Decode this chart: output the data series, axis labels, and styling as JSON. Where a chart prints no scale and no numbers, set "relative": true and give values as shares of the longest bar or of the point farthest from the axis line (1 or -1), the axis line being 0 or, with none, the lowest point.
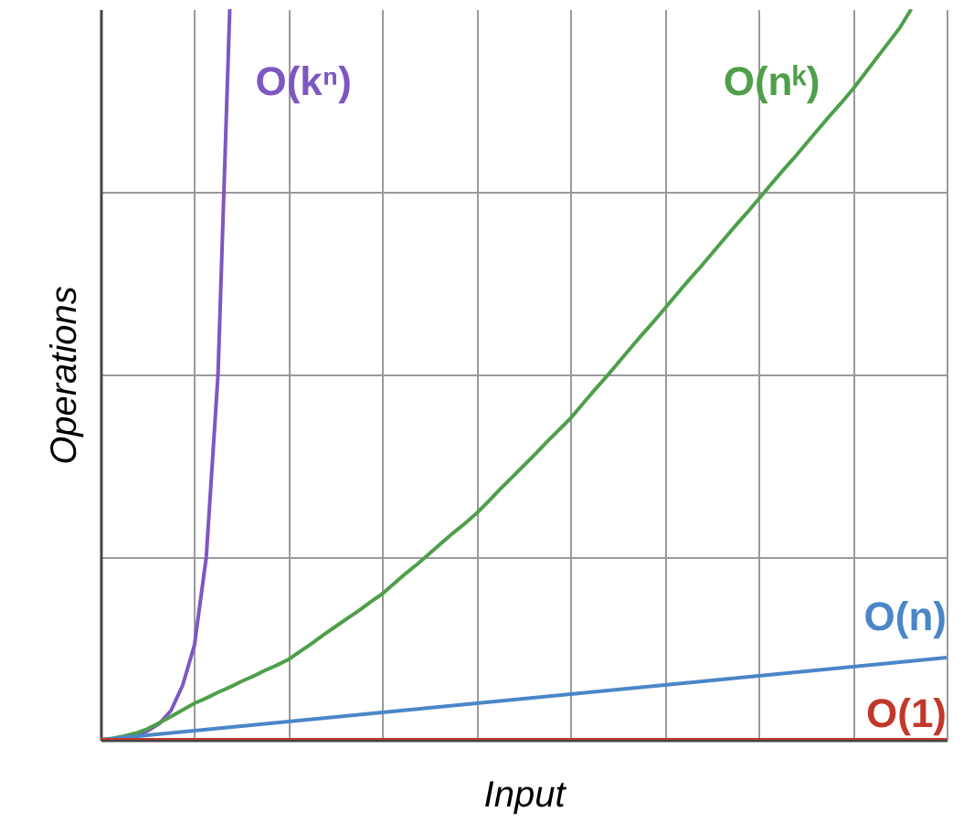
{
  "chart_data": {
    "type": "line",
    "relative": true,
    "xlabel": "Input",
    "ylabel": "Operations",
    "grid": true,
    "categories": [
      null,
      null,
      null,
      null,
      null,
      null,
      null,
      null,
      null,
      null,
      null,
      null,
      null,
      null,
      null,
      null,
      null,
      null,
      null,
      null,
      null,
      null,
      null,
      null,
      null,
      null,
      null,
      null,
      null,
      null,
      null,
      null,
      null,
      null,
      null,
      null,
      null,
      null,
      null,
      null,
      null,
      null,
      null,
      null,
      null,
      null,
      null,
      null,
      null,
      null,
      null,
      null,
      null,
      null,
      null,
      null,
      null,
      null,
      null,
      null,
      null,
      null,
      null,
      null,
      null,
      null,
      null,
      null,
      null,
      null,
      null,
      null,
      null
    ],
    "series": [
      {
        "name": "O(kⁿ)",
        "color": "#7e57c2",
        "values": [
          null,
          null,
          0.003,
          0.006,
          0.012,
          0.022,
          0.04,
          0.075,
          0.13,
          0.25,
          0.5,
          1.0,
          null,
          null,
          null,
          null,
          null,
          null,
          null,
          null,
          null,
          null,
          null,
          null,
          null,
          null,
          null,
          null,
          null,
          null,
          null,
          null,
          null,
          null,
          null,
          null,
          null,
          null,
          null,
          null,
          null,
          null,
          null,
          null,
          null,
          null,
          null,
          null,
          null,
          null,
          null,
          null,
          null,
          null,
          null,
          null,
          null,
          null,
          null,
          null,
          null,
          null,
          null,
          null,
          null,
          null,
          null,
          null,
          null,
          null,
          null,
          null,
          null
        ]
      },
      {
        "name": "O(nᵏ)",
        "color": "#4e9f4a",
        "values": [
          0,
          0.002,
          0.005,
          0.009,
          0.015,
          0.023,
          0.032,
          0.041,
          0.05,
          0.057,
          0.065,
          0.072,
          0.08,
          0.087,
          0.095,
          0.102,
          0.11,
          0.121,
          0.132,
          0.144,
          0.155,
          0.166,
          0.177,
          0.189,
          0.2,
          0.214,
          0.228,
          0.241,
          0.255,
          0.269,
          0.283,
          0.296,
          0.31,
          0.326,
          0.343,
          0.359,
          0.375,
          0.391,
          0.408,
          0.424,
          0.44,
          0.459,
          0.478,
          0.496,
          0.515,
          0.534,
          0.553,
          0.571,
          0.59,
          0.609,
          0.628,
          0.646,
          0.665,
          0.684,
          0.703,
          0.721,
          0.74,
          0.759,
          0.778,
          0.796,
          0.815,
          0.834,
          0.853,
          0.871,
          0.89,
          0.911,
          0.932,
          0.953,
          0.974,
          1.0,
          null,
          null,
          null
        ]
      },
      {
        "name": "O(n)",
        "color": "#4a86c8",
        "values": [
          0,
          0.0016,
          0.0031,
          0.0047,
          0.0063,
          0.0078,
          0.0094,
          0.0109,
          0.0125,
          0.0141,
          0.0156,
          0.0172,
          0.0188,
          0.0203,
          0.0219,
          0.0234,
          0.025,
          0.0266,
          0.0281,
          0.0297,
          0.0313,
          0.0328,
          0.0344,
          0.0359,
          0.0375,
          0.0391,
          0.0406,
          0.0422,
          0.0438,
          0.0453,
          0.0469,
          0.0484,
          0.05,
          0.0516,
          0.0531,
          0.0547,
          0.0563,
          0.0578,
          0.0594,
          0.0609,
          0.0625,
          0.0641,
          0.0656,
          0.0672,
          0.0688,
          0.0703,
          0.0719,
          0.0734,
          0.075,
          0.0766,
          0.0781,
          0.0797,
          0.0813,
          0.0828,
          0.0844,
          0.0859,
          0.0875,
          0.0891,
          0.0906,
          0.0922,
          0.0938,
          0.0953,
          0.0969,
          0.0984,
          0.1,
          0.1016,
          0.1031,
          0.1047,
          0.1063,
          0.1078,
          0.1094,
          0.1109,
          0.1125
        ]
      },
      {
        "name": "O(1)",
        "color": "#c0392b",
        "values": [
          0,
          0,
          0,
          0,
          0,
          0,
          0,
          0,
          0,
          0,
          0,
          0,
          0,
          0,
          0,
          0,
          0,
          0,
          0,
          0,
          0,
          0,
          0,
          0,
          0,
          0,
          0,
          0,
          0,
          0,
          0,
          0,
          0,
          0,
          0,
          0,
          0,
          0,
          0,
          0,
          0,
          0,
          0,
          0,
          0,
          0,
          0,
          0,
          0,
          0,
          0,
          0,
          0,
          0,
          0,
          0,
          0,
          0,
          0,
          0,
          0,
          0,
          0,
          0,
          0,
          0,
          0,
          0,
          0,
          0,
          0,
          0,
          0
        ]
      }
    ]
  }
}
